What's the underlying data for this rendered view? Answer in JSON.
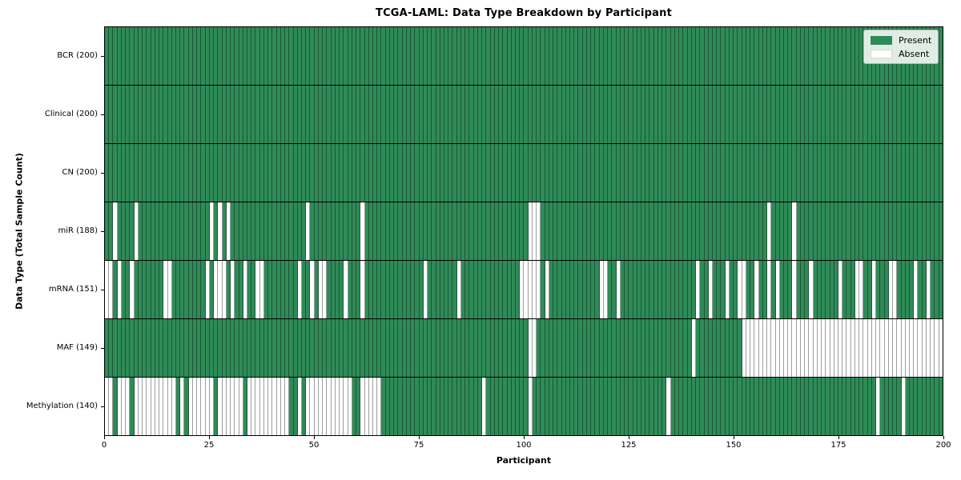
{
  "chart_data": {
    "type": "heatmap",
    "title": "TCGA-LAML: Data Type Breakdown by Participant",
    "xlabel": "Participant",
    "ylabel": "Data Type (Total Sample Count)",
    "x_range": [
      0,
      200
    ],
    "x_ticks": [
      0,
      25,
      50,
      75,
      100,
      125,
      150,
      175,
      200
    ],
    "n_participants": 200,
    "grid": false,
    "legend_position": "upper right",
    "colors": {
      "present": "#2e8b57",
      "absent": "#ffffff"
    },
    "legend": [
      {
        "label": "Present",
        "color": "#2e8b57"
      },
      {
        "label": "Absent",
        "color": "#ffffff"
      }
    ],
    "rows": [
      {
        "name": "BCR",
        "label": "BCR (200)",
        "total": 200,
        "absent": []
      },
      {
        "name": "Clinical",
        "label": "Clinical (200)",
        "total": 200,
        "absent": []
      },
      {
        "name": "CN",
        "label": "CN (200)",
        "total": 200,
        "absent": []
      },
      {
        "name": "miR",
        "label": "miR (188)",
        "total": 188,
        "absent": [
          2,
          7,
          25,
          27,
          29,
          48,
          61,
          101,
          102,
          103,
          158,
          164
        ]
      },
      {
        "name": "mRNA",
        "label": "mRNA (151)",
        "total": 151,
        "absent": [
          0,
          1,
          3,
          6,
          14,
          15,
          24,
          26,
          27,
          28,
          30,
          33,
          36,
          37,
          46,
          49,
          51,
          52,
          57,
          61,
          76,
          84,
          99,
          100,
          101,
          102,
          103,
          105,
          118,
          119,
          122,
          141,
          144,
          148,
          151,
          152,
          155,
          158,
          160,
          164,
          168,
          175,
          179,
          180,
          183,
          187,
          188,
          193,
          196
        ]
      },
      {
        "name": "MAF",
        "label": "MAF (149)",
        "total": 149,
        "absent": [
          101,
          102,
          140,
          152,
          153,
          154,
          155,
          156,
          157,
          158,
          159,
          160,
          161,
          162,
          163,
          164,
          165,
          166,
          167,
          168,
          169,
          170,
          171,
          172,
          173,
          174,
          175,
          176,
          177,
          178,
          179,
          180,
          181,
          182,
          183,
          184,
          185,
          186,
          187,
          188,
          189,
          190,
          191,
          192,
          193,
          194,
          195,
          196,
          197,
          198,
          199
        ]
      },
      {
        "name": "Methylation",
        "label": "Methylation (140)",
        "total": 140,
        "absent": [
          0,
          1,
          3,
          4,
          5,
          7,
          8,
          9,
          10,
          11,
          12,
          13,
          14,
          15,
          16,
          18,
          20,
          21,
          22,
          23,
          24,
          25,
          27,
          28,
          29,
          30,
          31,
          32,
          34,
          35,
          36,
          37,
          38,
          39,
          40,
          41,
          42,
          43,
          46,
          48,
          49,
          50,
          51,
          52,
          53,
          54,
          55,
          56,
          57,
          58,
          61,
          62,
          63,
          64,
          65,
          90,
          101,
          134,
          184,
          190
        ]
      }
    ]
  }
}
